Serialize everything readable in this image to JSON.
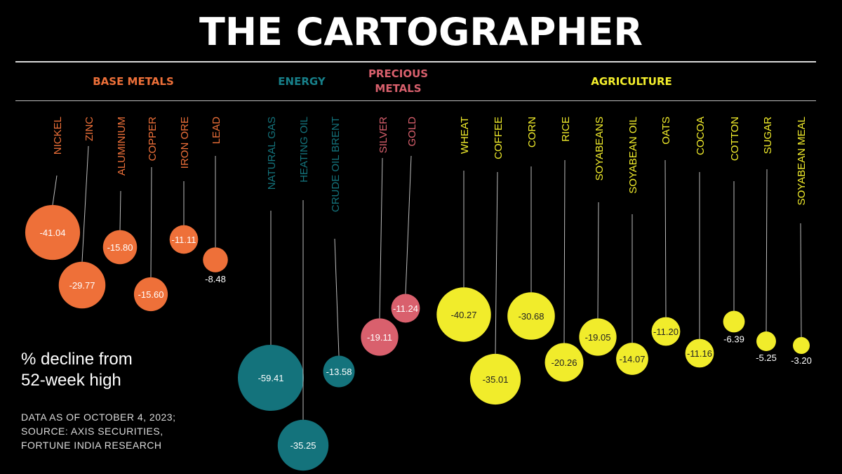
{
  "header": {
    "title": "THE CARTOGRAPHER"
  },
  "legend": {
    "note_line1": "% decline from",
    "note_line2": "52-week high",
    "source_line1": "DATA AS OF OCTOBER 4, 2023;",
    "source_line2": "SOURCE: AXIS SECURITIES,",
    "source_line3": "FORTUNE INDIA RESEARCH"
  },
  "colors": {
    "base_metals": "#ee7039",
    "energy": "#14737c",
    "precious_metals": "#d9606d",
    "agriculture": "#f1ec2b",
    "background": "#000000"
  },
  "chart_data": {
    "type": "bubble",
    "title": "THE CARTOGRAPHER",
    "measure": "% decline from 52-week high",
    "groups": [
      {
        "name": "BASE METALS",
        "color": "#ee7039",
        "items": [
          {
            "name": "NICKEL",
            "value": -41.04
          },
          {
            "name": "ZINC",
            "value": -29.77
          },
          {
            "name": "ALUMINIUM",
            "value": -15.8
          },
          {
            "name": "COPPER",
            "value": -15.6
          },
          {
            "name": "IRON ORE",
            "value": -11.11
          },
          {
            "name": "LEAD",
            "value": -8.48
          }
        ]
      },
      {
        "name": "ENERGY",
        "color": "#14737c",
        "items": [
          {
            "name": "NATURAL GAS",
            "value": -59.41
          },
          {
            "name": "HEATING OIL",
            "value": -35.25
          },
          {
            "name": "CRUDE OIL BRENT",
            "value": -13.58
          }
        ]
      },
      {
        "name": "PRECIOUS\nMETALS",
        "color": "#d9606d",
        "items": [
          {
            "name": "SILVER",
            "value": -19.11
          },
          {
            "name": "GOLD",
            "value": -11.24
          }
        ]
      },
      {
        "name": "AGRICULTURE",
        "color": "#f1ec2b",
        "items": [
          {
            "name": "WHEAT",
            "value": -40.27
          },
          {
            "name": "COFFEE",
            "value": -35.01
          },
          {
            "name": "CORN",
            "value": -30.68
          },
          {
            "name": "RICE",
            "value": -20.26
          },
          {
            "name": "SOYABEANS",
            "value": -19.05
          },
          {
            "name": "SOYABEAN OIL",
            "value": -14.07
          },
          {
            "name": "OATS",
            "value": -11.2
          },
          {
            "name": "COCOA",
            "value": -11.16
          },
          {
            "name": "COTTON",
            "value": -6.39
          },
          {
            "name": "SUGAR",
            "value": -5.25
          },
          {
            "name": "SOYABEAN MEAL",
            "value": -3.2
          }
        ]
      }
    ]
  }
}
